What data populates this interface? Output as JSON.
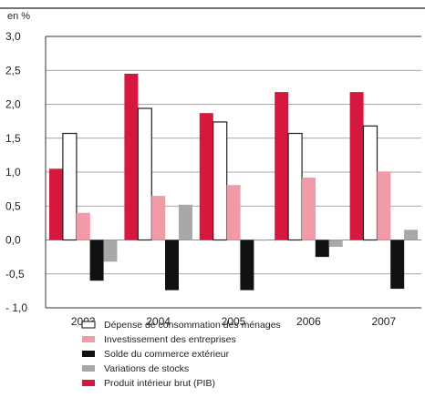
{
  "chart_data": {
    "type": "bar",
    "unit_label": "en %",
    "categories": [
      "2003",
      "2004",
      "2005",
      "2006",
      "2007"
    ],
    "ylim": [
      -1.0,
      3.0
    ],
    "y_ticks": [
      "3,0",
      "2,5",
      "2,0",
      "1,5",
      "1,0",
      "0,5",
      "0,0",
      "-0,5",
      "- 1,0"
    ],
    "y_tick_values": [
      3.0,
      2.5,
      2.0,
      1.5,
      1.0,
      0.5,
      0.0,
      -0.5,
      -1.0
    ],
    "grid": true,
    "legend_position": "bottom",
    "series": [
      {
        "name": "Produit intérieur brut (PIB)",
        "color": "#d6173e",
        "values": [
          1.05,
          2.45,
          1.87,
          2.18,
          2.18
        ]
      },
      {
        "name": "Dépense de consommation des ménages",
        "color": "#ffffff",
        "stroke": "#222222",
        "values": [
          1.57,
          1.94,
          1.74,
          1.57,
          1.68
        ]
      },
      {
        "name": "Investissement des entreprises",
        "color": "#f29aa8",
        "values": [
          0.4,
          0.65,
          0.81,
          0.92,
          1.01
        ]
      },
      {
        "name": "Solde du commerce extérieur",
        "color": "#111111",
        "values": [
          -0.6,
          -0.74,
          -0.74,
          -0.25,
          -0.72
        ]
      },
      {
        "name": "Variations de stocks",
        "color": "#a8a8a8",
        "values": [
          -0.32,
          0.52,
          -0.01,
          -0.1,
          0.15
        ]
      }
    ],
    "legend_order": [
      "Dépense de consommation des ménages",
      "Investissement des entreprises",
      "Solde du commerce extérieur",
      "Variations de stocks",
      "Produit intérieur brut (PIB)"
    ]
  }
}
